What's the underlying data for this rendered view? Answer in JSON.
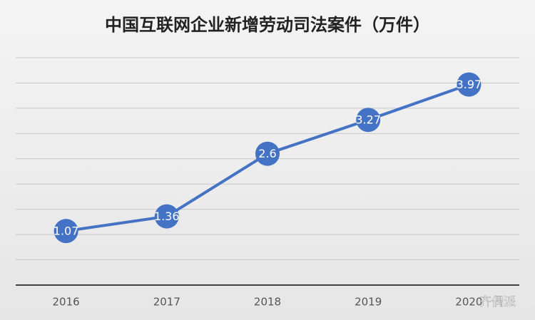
{
  "chart_data": {
    "type": "line",
    "title": "中国互联网企业新增劳动司法案件（万件）",
    "categories": [
      "2016",
      "2017",
      "2018",
      "2019",
      "2020"
    ],
    "values": [
      1.07,
      1.36,
      2.6,
      3.27,
      3.97
    ],
    "color": "#4472c4",
    "ylim": [
      0,
      4.5
    ],
    "yticks": [
      0,
      0.5,
      1,
      1.5,
      2,
      2.5,
      3,
      3.5,
      4,
      4.5
    ],
    "grid": true,
    "watermark": "齐偶派"
  }
}
